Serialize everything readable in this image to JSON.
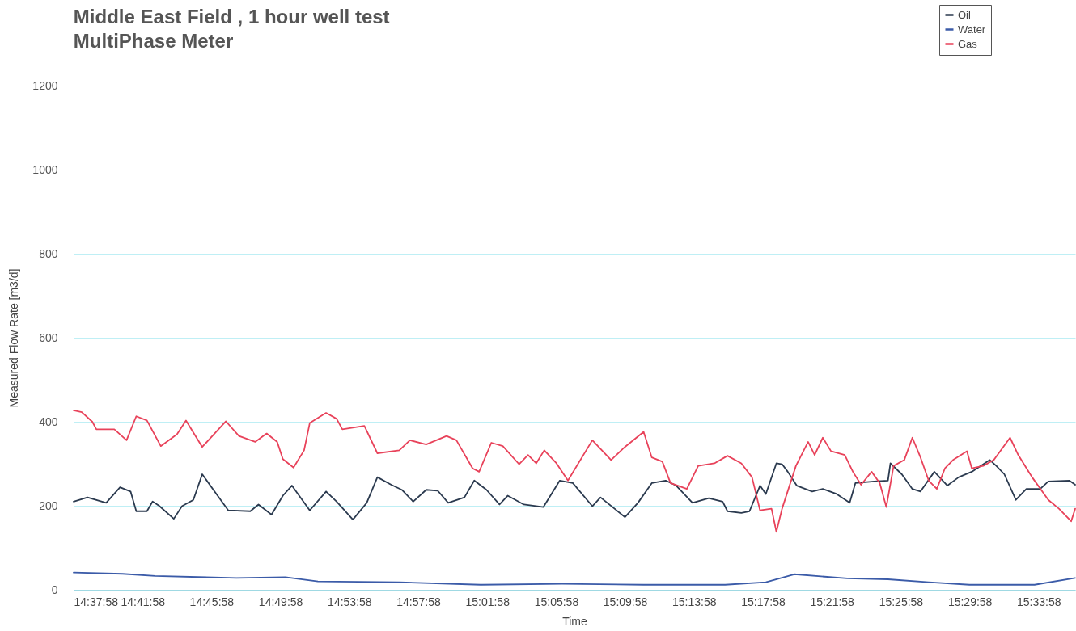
{
  "chart_data": {
    "type": "line",
    "title": "Middle East Field , 1 hour well test",
    "subtitle": "MultiPhase Meter",
    "xlabel": "Time",
    "ylabel": "Measured Flow Rate [m3/d]",
    "xlim": [
      14.6328,
      15.6015
    ],
    "ylim": [
      0,
      1200
    ],
    "yticks": [
      0,
      200,
      400,
      600,
      800,
      1000,
      1200
    ],
    "xticks": [
      {
        "value": 14.6328,
        "label": "14:37:58"
      },
      {
        "value": 14.6995,
        "label": "14:41:58"
      },
      {
        "value": 14.7661,
        "label": "14:45:58"
      },
      {
        "value": 14.8328,
        "label": "14:49:58"
      },
      {
        "value": 14.8995,
        "label": "14:53:58"
      },
      {
        "value": 14.9661,
        "label": "14:57:58"
      },
      {
        "value": 15.0328,
        "label": "15:01:58"
      },
      {
        "value": 15.0995,
        "label": "15:05:58"
      },
      {
        "value": 15.1661,
        "label": "15:09:58"
      },
      {
        "value": 15.2328,
        "label": "15:13:58"
      },
      {
        "value": 15.2995,
        "label": "15:17:58"
      },
      {
        "value": 15.3661,
        "label": "15:21:58"
      },
      {
        "value": 15.4328,
        "label": "15:25:58"
      },
      {
        "value": 15.4995,
        "label": "15:29:58"
      },
      {
        "value": 15.5661,
        "label": "15:33:58"
      }
    ],
    "grid": "y",
    "legend": "top right",
    "series": [
      {
        "name": "Oil",
        "color": "#2b3a4f",
        "x": [
          14.6328,
          14.6462,
          14.6643,
          14.6777,
          14.6879,
          14.6934,
          14.7037,
          14.7092,
          14.7155,
          14.7297,
          14.7376,
          14.7486,
          14.7572,
          14.7691,
          14.7824,
          14.8037,
          14.8116,
          14.8242,
          14.8352,
          14.8439,
          14.8612,
          14.877,
          14.8872,
          14.9029,
          14.9163,
          14.9266,
          14.94,
          14.9502,
          14.9612,
          14.9738,
          14.9849,
          14.9951,
          15.0108,
          15.0203,
          15.0321,
          15.0447,
          15.0526,
          15.0683,
          15.0872,
          15.103,
          15.1156,
          15.1345,
          15.1424,
          15.166,
          15.1786,
          15.192,
          15.2054,
          15.2156,
          15.2314,
          15.2471,
          15.2605,
          15.2652,
          15.2786,
          15.2865,
          15.2967,
          15.3023,
          15.3125,
          15.318,
          15.3235,
          15.3322,
          15.3471,
          15.3574,
          15.3708,
          15.3834,
          15.3889,
          15.407,
          15.4204,
          15.4228,
          15.4338,
          15.444,
          15.4519,
          15.4653,
          15.4779,
          15.4889,
          15.5015,
          15.5189,
          15.5252,
          15.533,
          15.5441,
          15.5543,
          15.5677,
          15.5755,
          15.5958,
          15.6015
        ],
        "values": [
          210,
          220,
          207,
          244,
          234,
          187,
          187,
          210,
          200,
          169,
          199,
          214,
          275,
          234,
          189,
          187,
          203,
          179,
          224,
          248,
          189,
          234,
          210,
          167,
          207,
          268,
          250,
          238,
          210,
          238,
          236,
          207,
          220,
          260,
          238,
          203,
          224,
          203,
          197,
          260,
          254,
          199,
          220,
          173,
          207,
          254,
          260,
          248,
          207,
          218,
          210,
          187,
          183,
          187,
          248,
          228,
          301,
          299,
          281,
          248,
          234,
          240,
          228,
          207,
          254,
          258,
          260,
          301,
          275,
          240,
          234,
          281,
          248,
          268,
          281,
          309,
          295,
          275,
          214,
          240,
          240,
          258,
          260,
          250
        ]
      },
      {
        "name": "Water",
        "color": "#3b5ba8",
        "x": [
          14.6328,
          14.6801,
          14.7116,
          14.7903,
          14.8376,
          14.8691,
          14.9478,
          15.0266,
          15.1054,
          15.1841,
          15.2629,
          15.3023,
          15.3298,
          15.381,
          15.4204,
          15.4598,
          15.4992,
          15.5622,
          15.6015
        ],
        "values": [
          41,
          38,
          33,
          28,
          30,
          20,
          18,
          12,
          14,
          12,
          12,
          18,
          37,
          27,
          25,
          18,
          12,
          12,
          28
        ]
      },
      {
        "name": "Gas",
        "color": "#e8425a",
        "x": [
          14.6328,
          14.6407,
          14.6509,
          14.6548,
          14.6722,
          14.684,
          14.6934,
          14.7037,
          14.7171,
          14.7328,
          14.7415,
          14.7572,
          14.7801,
          14.7927,
          14.8084,
          14.8195,
          14.8297,
          14.8352,
          14.8455,
          14.8557,
          14.8612,
          14.877,
          14.8872,
          14.8927,
          14.914,
          14.9266,
          14.9478,
          14.9581,
          14.9738,
          14.9935,
          15.003,
          15.0187,
          15.025,
          15.0368,
          15.0479,
          15.0636,
          15.0723,
          15.0802,
          15.088,
          15.0998,
          15.1109,
          15.1345,
          15.1526,
          15.166,
          15.1841,
          15.192,
          15.2022,
          15.2101,
          15.2259,
          15.2369,
          15.2526,
          15.2652,
          15.2786,
          15.2889,
          15.2967,
          15.3078,
          15.3125,
          15.318,
          15.3314,
          15.3432,
          15.3495,
          15.3574,
          15.3653,
          15.3786,
          15.3865,
          15.3944,
          15.4046,
          15.4125,
          15.4188,
          15.4259,
          15.4362,
          15.444,
          15.4519,
          15.4598,
          15.4677,
          15.4755,
          15.4834,
          15.4968,
          15.5015,
          15.5126,
          15.5228,
          15.5385,
          15.5464,
          15.5598,
          15.5755,
          15.5858,
          15.5976,
          15.6015
        ],
        "values": [
          427,
          423,
          400,
          382,
          382,
          356,
          413,
          403,
          342,
          370,
          403,
          340,
          401,
          366,
          352,
          372,
          352,
          311,
          291,
          332,
          397,
          421,
          407,
          382,
          390,
          325,
          332,
          356,
          346,
          366,
          356,
          289,
          281,
          350,
          342,
          299,
          321,
          301,
          332,
          301,
          260,
          356,
          309,
          340,
          376,
          315,
          305,
          254,
          240,
          295,
          301,
          319,
          301,
          268,
          189,
          193,
          138,
          193,
          295,
          352,
          321,
          362,
          330,
          321,
          281,
          250,
          281,
          254,
          197,
          295,
          309,
          362,
          315,
          260,
          240,
          289,
          309,
          330,
          289,
          295,
          309,
          362,
          321,
          268,
          214,
          193,
          163,
          193
        ]
      }
    ]
  }
}
